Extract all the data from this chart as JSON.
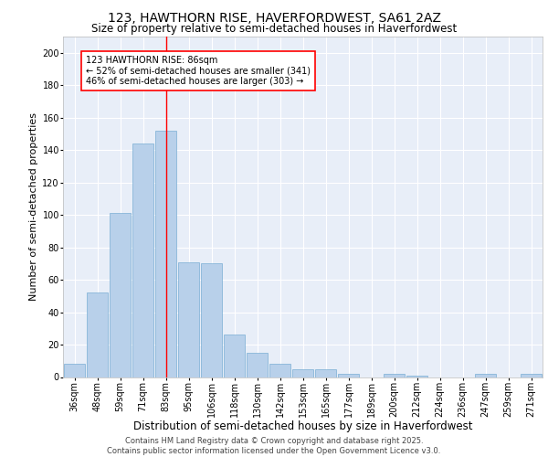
{
  "title1": "123, HAWTHORN RISE, HAVERFORDWEST, SA61 2AZ",
  "title2": "Size of property relative to semi-detached houses in Haverfordwest",
  "xlabel": "Distribution of semi-detached houses by size in Haverfordwest",
  "ylabel": "Number of semi-detached properties",
  "categories": [
    "36sqm",
    "48sqm",
    "59sqm",
    "71sqm",
    "83sqm",
    "95sqm",
    "106sqm",
    "118sqm",
    "130sqm",
    "142sqm",
    "153sqm",
    "165sqm",
    "177sqm",
    "189sqm",
    "200sqm",
    "212sqm",
    "224sqm",
    "236sqm",
    "247sqm",
    "259sqm",
    "271sqm"
  ],
  "values": [
    8,
    52,
    101,
    144,
    152,
    71,
    70,
    26,
    15,
    8,
    5,
    5,
    2,
    0,
    2,
    1,
    0,
    0,
    2,
    0,
    2
  ],
  "bar_color": "#b8d0ea",
  "bar_edge_color": "#7aaed4",
  "vline_color": "red",
  "annotation_text": "123 HAWTHORN RISE: 86sqm\n← 52% of semi-detached houses are smaller (341)\n46% of semi-detached houses are larger (303) →",
  "annotation_box_color": "white",
  "annotation_box_edge": "red",
  "ylim": [
    0,
    210
  ],
  "yticks": [
    0,
    20,
    40,
    60,
    80,
    100,
    120,
    140,
    160,
    180,
    200
  ],
  "background_color": "#e8eef8",
  "grid_color": "white",
  "footer": "Contains HM Land Registry data © Crown copyright and database right 2025.\nContains public sector information licensed under the Open Government Licence v3.0.",
  "title1_fontsize": 10,
  "title2_fontsize": 8.5,
  "xlabel_fontsize": 8.5,
  "ylabel_fontsize": 8,
  "tick_fontsize": 7,
  "annotation_fontsize": 7,
  "footer_fontsize": 6
}
